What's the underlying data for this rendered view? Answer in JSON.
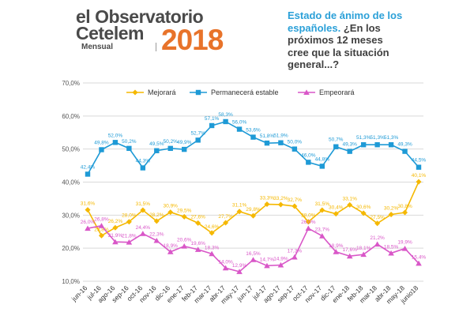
{
  "logo": {
    "line1": "el Observatorio",
    "line2": "Cetelem",
    "sub": "Mensual",
    "year": "2018"
  },
  "question": {
    "part1": "Estado de ánimo de los españoles.",
    "part2": "¿En los próximos 12 meses cree que la situación general...?"
  },
  "colors": {
    "mejorara": "#f5b800",
    "estable": "#1e9ad6",
    "empeorara": "#d957c8",
    "grid": "#d9d9d9"
  },
  "chart_data": {
    "type": "line",
    "title": "¿En los próximos 12 meses cree que la situación general...?",
    "ylim": [
      10,
      70
    ],
    "yticks": [
      "10,0%",
      "20,0%",
      "30,0%",
      "40,0%",
      "50,0%",
      "60,0%",
      "70,0%"
    ],
    "ytick_values": [
      10,
      20,
      30,
      40,
      50,
      60,
      70
    ],
    "grid": true,
    "legend_position": "top",
    "categories": [
      "jun-16",
      "jul-16",
      "ago-16",
      "sep-16",
      "oct-16",
      "nov-16",
      "dic-16",
      "ene-17",
      "feb-17",
      "mar-17",
      "abr-17",
      "may-17",
      "jun-17",
      "jul-17",
      "ago-17",
      "sep-17",
      "oct-17",
      "nov-17",
      "dic-17",
      "ene-18",
      "feb-18",
      "mar-18",
      "abr-18",
      "may-18",
      "junio18"
    ],
    "series": [
      {
        "name": "Mejorará",
        "color_key": "mejorara",
        "values": [
          31.6,
          23.8,
          26.2,
          28.0,
          31.5,
          28.2,
          30.9,
          29.5,
          27.6,
          24.6,
          27.7,
          31.1,
          29.8,
          33.3,
          33.2,
          32.7,
          28.0,
          31.5,
          30.4,
          33.1,
          30.6,
          27.5,
          30.2,
          30.8,
          40.1
        ],
        "labels": [
          "31,6%",
          "23,8%",
          "26,2%",
          "28,0%",
          "31,5%",
          "28,2%",
          "30,9%",
          "29,5%",
          "27,6%",
          "24,6%",
          "27,7%",
          "31,1%",
          "29,8%",
          "33,3%",
          "33,2%",
          "32,7%",
          "28,0%",
          "31,5%",
          "30,4%",
          "33,1%",
          "30,6%",
          "27,5%",
          "30,2%",
          "30,8%",
          "40,1%"
        ]
      },
      {
        "name": "Permanecerá estable",
        "color_key": "estable",
        "values": [
          42.4,
          49.8,
          52.0,
          50.2,
          44.3,
          49.5,
          50.2,
          49.9,
          52.7,
          57.1,
          58.3,
          56.0,
          53.6,
          51.8,
          51.9,
          50.0,
          46.0,
          44.8,
          50.7,
          49.3,
          51.3,
          51.3,
          51.3,
          49.3,
          44.5
        ],
        "labels": [
          "42,4%",
          "49,8%",
          "52,0%",
          "50,2%",
          "44,3%",
          "49,5%",
          "50,2%",
          "49,9%",
          "52,7%",
          "57,1%",
          "58,3%",
          "56,0%",
          "53,6%",
          "51,8%",
          "51,9%",
          "50,0%",
          "46,0%",
          "44,8%",
          "50,7%",
          "49,3%",
          "51,3%",
          "51,3%",
          "51,3%",
          "49,3%",
          "44,5%"
        ]
      },
      {
        "name": "Empeorará",
        "color_key": "empeorara",
        "values": [
          26.0,
          26.8,
          21.9,
          21.8,
          24.4,
          22.3,
          18.9,
          20.6,
          19.6,
          18.3,
          14.0,
          12.9,
          16.5,
          14.7,
          14.9,
          17.3,
          26.0,
          23.7,
          18.9,
          17.6,
          18.1,
          21.2,
          18.5,
          19.9,
          15.4
        ],
        "labels": [
          "26,0%",
          "26,8%",
          "21,9%",
          "21,8%",
          "24,4%",
          "22,3%",
          "18,9%",
          "20,6%",
          "19,6%",
          "18,3%",
          "14,0%",
          "12,9%",
          "16,5%",
          "14,7%",
          "14,9%",
          "17,3%",
          "26,0%",
          "23,7%",
          "18,9%",
          "17,6%",
          "18,1%",
          "21,2%",
          "18,5%",
          "19,9%",
          "15,4%"
        ]
      }
    ]
  }
}
